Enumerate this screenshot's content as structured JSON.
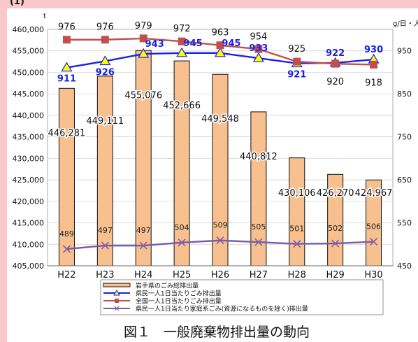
{
  "chart_data": {
    "type": "bar",
    "categories": [
      "H22",
      "H23",
      "H24",
      "H25",
      "H26",
      "H27",
      "H28",
      "H29",
      "H30"
    ],
    "title": "図１　一般廃棄物排出量の動向",
    "left_unit": "t",
    "right_unit": "g/日・人",
    "ylim_left": [
      405000,
      460000
    ],
    "yticks_left": [
      "405,000",
      "410,000",
      "415,000",
      "420,000",
      "425,000",
      "430,000",
      "435,000",
      "440,000",
      "445,000",
      "450,000",
      "455,000",
      "460,000"
    ],
    "ylim_right": [
      450,
      1000
    ],
    "yticks_right": [
      "450",
      "550",
      "650",
      "750",
      "850",
      "950"
    ],
    "bar_series": {
      "name": "岩手県のごみ総排出量",
      "values": [
        446281,
        449111,
        455076,
        452666,
        449548,
        440812,
        430106,
        426270,
        424967
      ],
      "labels": [
        "446,281",
        "449,111",
        "455,076",
        "452,666",
        "449,548",
        "440,812",
        "430,106",
        "426,270",
        "424,967"
      ],
      "color": "#f9c08f"
    },
    "line_series": [
      {
        "name": "県民一人1日当たりごみ排出量",
        "values": [
          911,
          926,
          943,
          945,
          945,
          933,
          921,
          922,
          930
        ],
        "labels": [
          "911",
          "926",
          "943",
          "945",
          "945",
          "933",
          "921",
          "922",
          "930"
        ],
        "color": "#1a22e6",
        "marker": "triangle"
      },
      {
        "name": "全国一人1日当たりごみ排出量",
        "values": [
          976,
          976,
          979,
          972,
          963,
          954,
          925,
          920,
          918
        ],
        "labels": [
          "976",
          "976",
          "979",
          "972",
          "963",
          "954",
          "925",
          "920",
          "918"
        ],
        "color": "#c0504d",
        "marker": "square"
      },
      {
        "name": "県民一人1日当たり家庭系ごみ(資源になるものを除く)排出量",
        "values": [
          489,
          497,
          497,
          504,
          509,
          505,
          501,
          502,
          506
        ],
        "labels": [
          "489",
          "497",
          "497",
          "504",
          "509",
          "505",
          "501",
          "502",
          "506"
        ],
        "color": "#7a5ca6",
        "marker": "x"
      }
    ],
    "top_text": "(1)"
  }
}
